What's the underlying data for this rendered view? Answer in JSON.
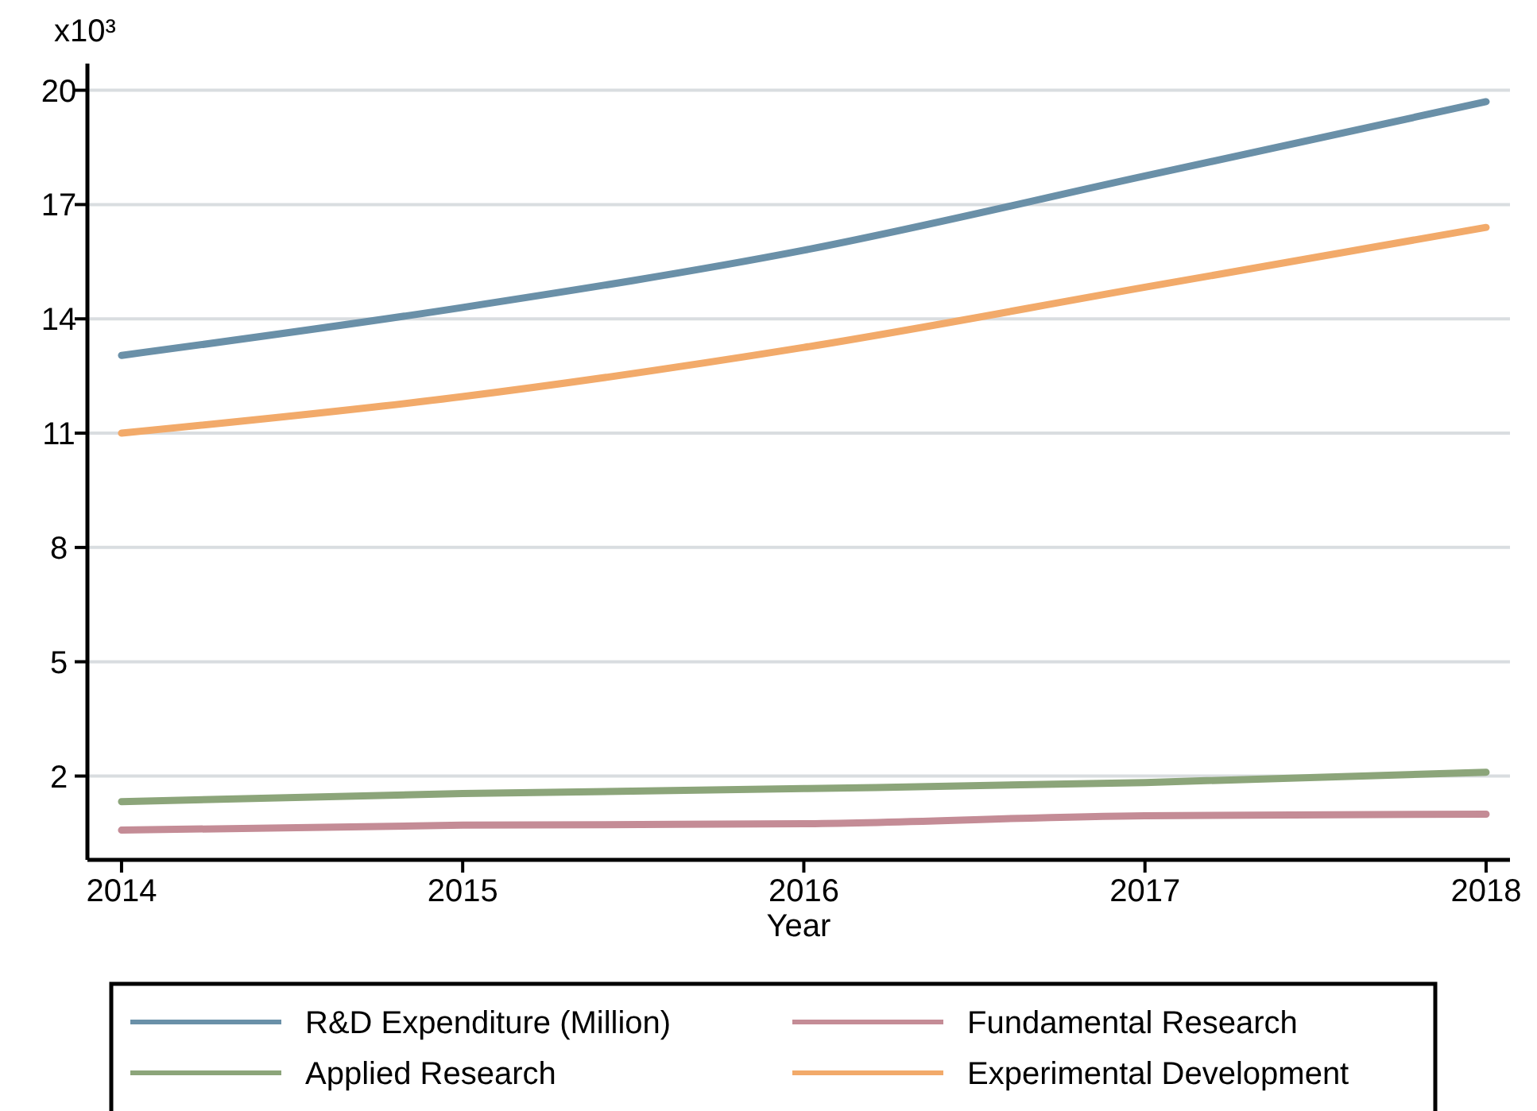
{
  "chart_data": {
    "type": "line",
    "xlabel": "Year",
    "ylabel": "x10³",
    "x": [
      2014,
      2015,
      2016,
      2017,
      2018
    ],
    "xlim": [
      2013.9,
      2018.07
    ],
    "xticks": [
      2014,
      2015,
      2016,
      2017,
      2018
    ],
    "ylim": [
      -0.2,
      20.7
    ],
    "yticks": [
      2,
      5,
      8,
      11,
      14,
      17,
      20
    ],
    "grid": "y",
    "legend": "bottom",
    "marker": "none",
    "line_style": "solid",
    "series": [
      {
        "name": "R&D Expenditure (Million)",
        "color": "#6a90a8",
        "values": [
          13.04,
          14.3,
          15.8,
          17.75,
          19.7
        ]
      },
      {
        "name": "Fundamental Research",
        "color": "#c48c96",
        "values": [
          0.58,
          0.71,
          0.75,
          0.96,
          1.0
        ]
      },
      {
        "name": "Applied Research",
        "color": "#8ca57a",
        "values": [
          1.33,
          1.54,
          1.67,
          1.83,
          2.1
        ]
      },
      {
        "name": "Experimental Development",
        "color": "#f2aa6a",
        "values": [
          11.0,
          11.96,
          13.25,
          14.83,
          16.4
        ]
      }
    ]
  }
}
